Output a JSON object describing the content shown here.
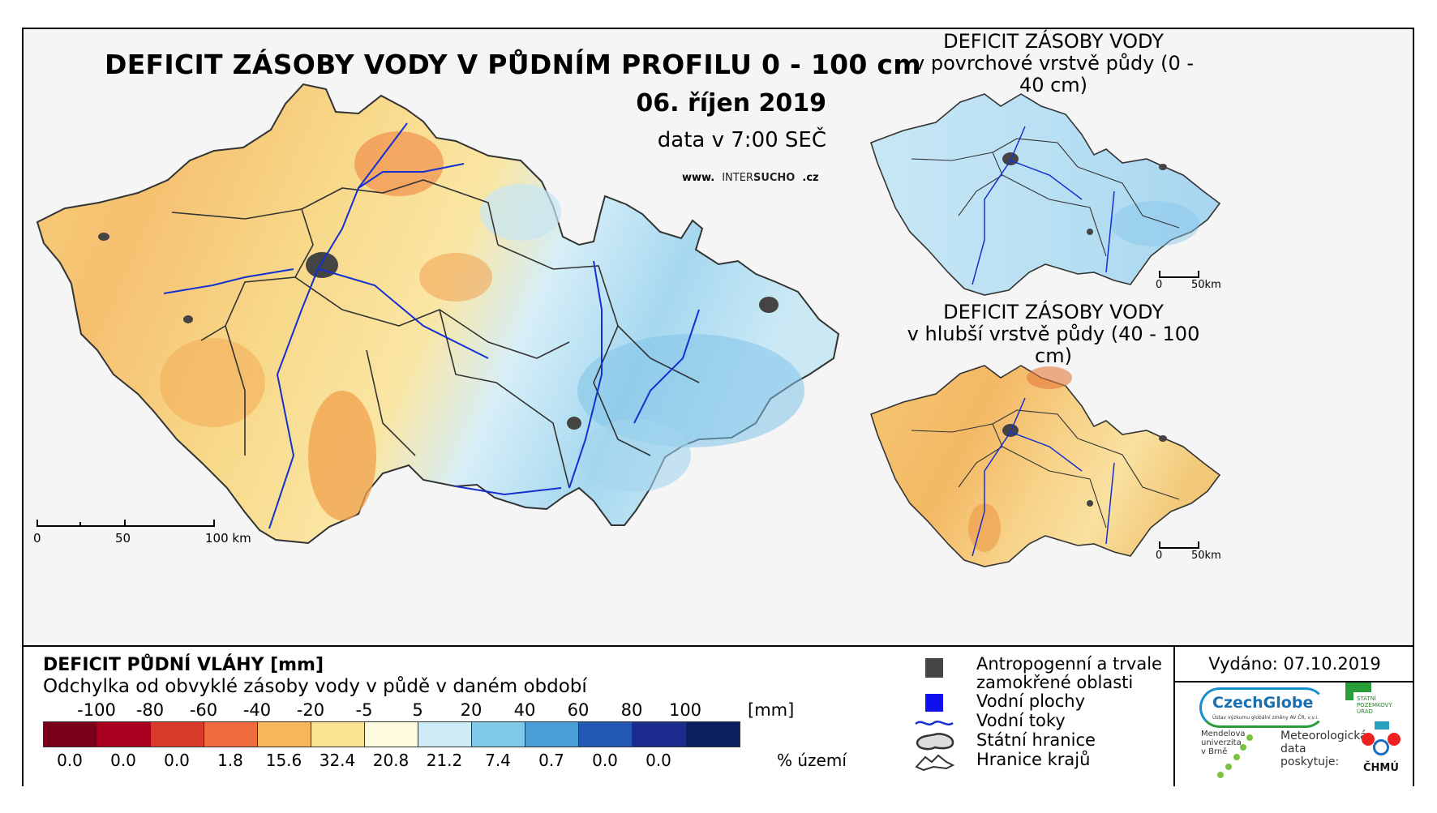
{
  "title": "DEFICIT ZÁSOBY VODY V PŮDNÍM PROFILU 0 - 100 cm",
  "date": "06. říjen 2019",
  "data_time": "data v 7:00 SEČ",
  "website": {
    "prefix": "www.",
    "brand_light": "INTER",
    "brand_bold": "SUCHO",
    "suffix": ".cz"
  },
  "main_scale": {
    "labels": [
      "0",
      "50",
      "100 km"
    ]
  },
  "inset_top": {
    "title_line1": "DEFICIT ZÁSOBY VODY",
    "title_line2": "v povrchové vrstvě půdy (0 - 40 cm)",
    "scale_labels": [
      "0",
      "50km"
    ]
  },
  "inset_bottom": {
    "title_line1": "DEFICIT ZÁSOBY VODY",
    "title_line2": "v hlubší vrstvě půdy (40 - 100 cm)",
    "scale_labels": [
      "0",
      "50km"
    ]
  },
  "legend": {
    "title": "DEFICIT PŮDNÍ VLÁHY [mm]",
    "subtitle": "Odchylka od obvyklé zásoby vody v půdě v daném období",
    "breaks": [
      "-100",
      "-80",
      "-60",
      "-40",
      "-20",
      "-5",
      "5",
      "20",
      "40",
      "60",
      "80",
      "100"
    ],
    "unit": "[mm]",
    "colors": [
      "#7a0019",
      "#a8001e",
      "#d93a2b",
      "#f06b3d",
      "#f5b75a",
      "#fae491",
      "#fffbe0",
      "#cdebf5",
      "#7ec8e8",
      "#4a9ed6",
      "#2458b5",
      "#1c2b8e",
      "#0d1f5e"
    ],
    "percentages": [
      "0.0",
      "0.0",
      "0.0",
      "1.8",
      "15.6",
      "32.4",
      "20.8",
      "21.2",
      "7.4",
      "0.7",
      "0.0",
      "0.0"
    ],
    "percent_label": "% území"
  },
  "symbols": {
    "urban_line1": "Antropogenní a trvale",
    "urban_line2": "zamokřené oblasti",
    "water_bodies": "Vodní plochy",
    "rivers": "Vodní toky",
    "state_border": "Státní hranice",
    "region_border": "Hranice krajů"
  },
  "issued": "Vydáno: 07.10.2019",
  "logos": {
    "czechglobe": "CzechGlobe",
    "czechglobe_sub": "Ústav výzkumu globální změny AV ČR, v.v.i.",
    "spu_line1": "STÁTNÍ",
    "spu_line2": "POZEMKOVÝ",
    "spu_line3": "ÚŘAD",
    "mendel_line1": "Mendelova",
    "mendel_line2": "univerzita",
    "mendel_line3": "v Brně",
    "meteo_line1": "Meteorologická",
    "meteo_line2": "data",
    "meteo_line3": "poskytuje:",
    "chmu": "ČHMÚ"
  }
}
